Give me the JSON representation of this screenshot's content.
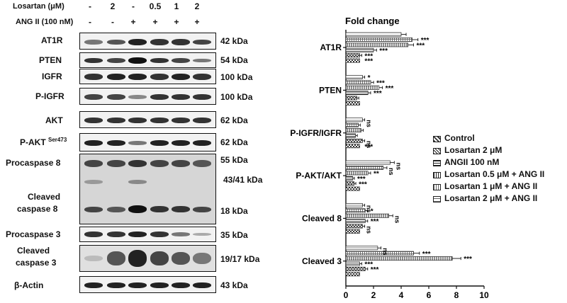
{
  "header": {
    "losartan_label": "Losartan (μM)",
    "ang_label": "ANG II (100 nM)",
    "losartan_values": [
      "-",
      "2",
      "-",
      "0.5",
      "1",
      "2"
    ],
    "ang_values": [
      "-",
      "-",
      "+",
      "+",
      "+",
      "+"
    ]
  },
  "blots": [
    {
      "label": "AT1R",
      "kda": "42 kDa"
    },
    {
      "label": "PTEN",
      "kda": "54 kDa"
    },
    {
      "label": "IGFR",
      "kda": "100 kDa"
    },
    {
      "label": "P-IGFR",
      "kda": "100 kDa"
    },
    {
      "label": "AKT",
      "kda": "62 kDa"
    },
    {
      "label": "P-AKT",
      "sup": "Ser473",
      "kda": "62 kDa"
    },
    {
      "label": "Procaspase 8",
      "kda": "55 kDa"
    },
    {
      "label": "",
      "kda": "43/41 kDa"
    },
    {
      "label": "Cleaved",
      "label2": "caspase 8",
      "kda": "18 kDa"
    },
    {
      "label": "Procaspase 3",
      "kda": "35 kDa"
    },
    {
      "label": "Cleaved",
      "label2": "caspase 3",
      "kda": "19/17 kDa"
    },
    {
      "label": "β-Actin",
      "kda": "43 kDa"
    }
  ],
  "legend": {
    "entries": [
      "Control",
      "Losartan 2 μM",
      "ANGII 100 nM",
      "Losartan 0.5 μM + ANG II",
      "Losartan 1 μM + ANG II",
      "Losartan 2 μM + ANG II"
    ]
  },
  "chart_data": {
    "type": "bar",
    "orientation": "horizontal",
    "title": "Fold change",
    "xlim": [
      0,
      10
    ],
    "xticks": [
      "0",
      "2",
      "4",
      "6",
      "8",
      "10"
    ],
    "categories": [
      "AT1R",
      "PTEN",
      "P-IGFR/IGFR",
      "P-AKT/AKT",
      "Cleaved 8",
      "Cleaved 3"
    ],
    "series": [
      {
        "name": "Control",
        "values": [
          1,
          1,
          1,
          1,
          1,
          1
        ]
      },
      {
        "name": "Losartan 2 μM",
        "values": [
          1,
          0.8,
          1.2,
          0.6,
          1.2,
          1.4
        ]
      },
      {
        "name": "ANGII 100 nM",
        "values": [
          2.0,
          1.6,
          0.7,
          0.5,
          1.4,
          1.0
        ]
      },
      {
        "name": "Losartan 0.5 μM + ANG II",
        "values": [
          4.5,
          2.4,
          1.1,
          1.6,
          3.1,
          7.7
        ]
      },
      {
        "name": "Losartan 1 μM + ANG II",
        "values": [
          4.8,
          1.8,
          0.9,
          2.7,
          1.4,
          4.9
        ]
      },
      {
        "name": "Losartan 2 μM + ANG II",
        "values": [
          4.0,
          1.2,
          1.2,
          3.2,
          1.2,
          2.3
        ]
      }
    ],
    "annotations": [
      [
        "",
        "***",
        "***",
        "***",
        "***",
        "***"
      ],
      [
        "*",
        "***",
        "***",
        "***",
        "",
        ""
      ],
      [
        "ns",
        "",
        "",
        "",
        "ns",
        "***"
      ],
      [
        "ns",
        "ns",
        "**",
        "***",
        "***",
        ""
      ],
      [
        "ns",
        "*",
        "ns",
        "***",
        "ns",
        ""
      ],
      [
        "ns",
        "***",
        "***",
        "***",
        "***",
        ""
      ]
    ]
  }
}
